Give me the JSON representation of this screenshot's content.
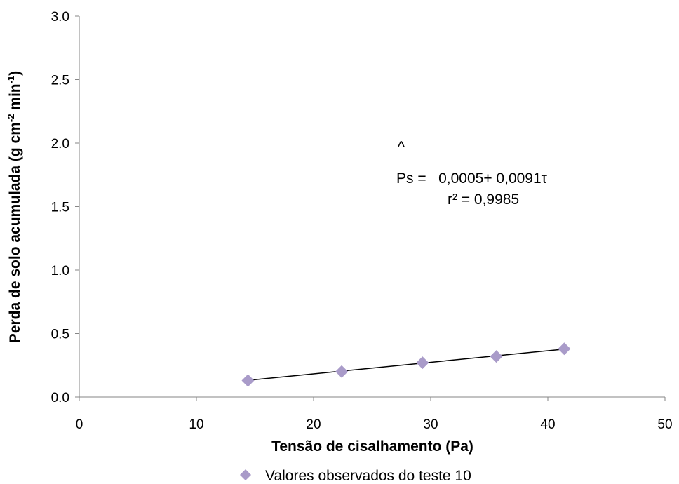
{
  "chart_data": {
    "type": "scatter",
    "xlabel": "Tensão de cisalhamento (Pa)",
    "ylabel_parts": {
      "main": "Perda de solo acumulada (g cm",
      "sup1": "-2",
      "mid": " min",
      "sup2": "-1",
      "end": ")"
    },
    "xlim": [
      0,
      50
    ],
    "ylim": [
      0,
      3
    ],
    "x_ticks": [
      0,
      10,
      20,
      30,
      40,
      50
    ],
    "x_tick_labels": [
      "0",
      "10",
      "20",
      "30",
      "40",
      "50"
    ],
    "y_ticks": [
      0,
      0.5,
      1,
      1.5,
      2,
      2.5,
      3
    ],
    "y_tick_labels": [
      "0.0",
      "0.5",
      "1.0",
      "1.5",
      "2.0",
      "2.5",
      "3.0"
    ],
    "grid": false,
    "legend_position": "bottom",
    "series": [
      {
        "name": "Valores observados do teste 10",
        "marker": "diamond",
        "color": "#a99bc9",
        "x": [
          14.4,
          22.4,
          29.3,
          35.6,
          41.4
        ],
        "y": [
          0.13,
          0.2,
          0.27,
          0.32,
          0.38
        ]
      }
    ],
    "trendline": {
      "x": [
        14.4,
        41.4
      ],
      "y": [
        0.1315,
        0.3772
      ],
      "color": "#000000"
    },
    "annotation": {
      "hat": "^",
      "equation": "Ps =   0,0005+ 0,0091τ",
      "r2": "r² = 0,9985"
    }
  }
}
